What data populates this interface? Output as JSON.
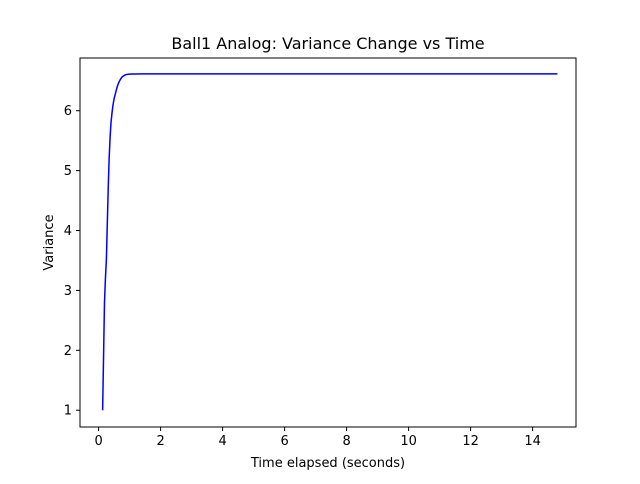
{
  "chart_data": {
    "type": "line",
    "title": "Ball1 Analog: Variance Change vs Time",
    "xlabel": "Time elapsed (seconds)",
    "ylabel": "Variance",
    "xlim": [
      -0.6,
      15.4
    ],
    "ylim": [
      0.72,
      6.88
    ],
    "xticks": [
      0,
      2,
      4,
      6,
      8,
      10,
      12,
      14
    ],
    "yticks": [
      1,
      2,
      3,
      4,
      5,
      6
    ],
    "grid": false,
    "line_color": "#0000ff",
    "series": [
      {
        "x": [
          0.13,
          0.16,
          0.19,
          0.22,
          0.25,
          0.28,
          0.31,
          0.34,
          0.37,
          0.4,
          0.43,
          0.46,
          0.5,
          0.55,
          0.6,
          0.65,
          0.7,
          0.75,
          0.8,
          0.85,
          0.9,
          1.0,
          1.1,
          1.2,
          1.4,
          1.6,
          2.0,
          3.0,
          5.0,
          8.0,
          11.0,
          14.8
        ],
        "y": [
          1.0,
          1.9,
          2.8,
          3.2,
          3.5,
          4.1,
          4.7,
          5.2,
          5.55,
          5.8,
          5.95,
          6.08,
          6.2,
          6.3,
          6.4,
          6.47,
          6.52,
          6.56,
          6.58,
          6.595,
          6.605,
          6.61,
          6.612,
          6.613,
          6.614,
          6.614,
          6.614,
          6.614,
          6.614,
          6.614,
          6.614,
          6.614
        ]
      }
    ]
  }
}
